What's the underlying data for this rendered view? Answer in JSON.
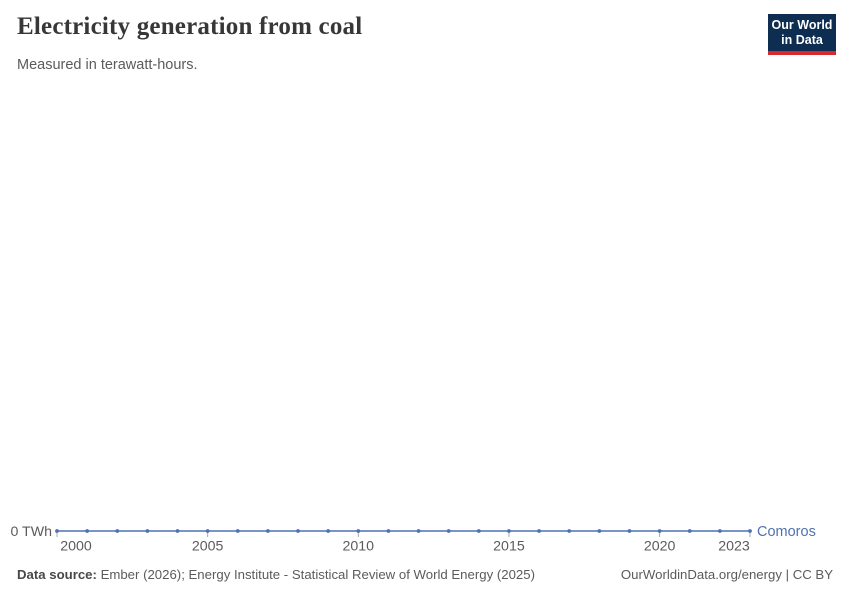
{
  "header": {
    "title": "Electricity generation from coal",
    "subtitle": "Measured in terawatt-hours.",
    "logo": {
      "line1": "Our World",
      "line2": "in Data"
    }
  },
  "chart_data": {
    "type": "line",
    "title": "Electricity generation from coal",
    "subtitle": "Measured in terawatt-hours.",
    "unit": "TWh",
    "x": [
      2000,
      2001,
      2002,
      2003,
      2004,
      2005,
      2006,
      2007,
      2008,
      2009,
      2010,
      2011,
      2012,
      2013,
      2014,
      2015,
      2016,
      2017,
      2018,
      2019,
      2020,
      2021,
      2022,
      2023
    ],
    "series": [
      {
        "name": "Comoros",
        "values": [
          0,
          0,
          0,
          0,
          0,
          0,
          0,
          0,
          0,
          0,
          0,
          0,
          0,
          0,
          0,
          0,
          0,
          0,
          0,
          0,
          0,
          0,
          0,
          0
        ]
      }
    ],
    "x_tick_labels": [
      2000,
      2005,
      2010,
      2015,
      2020,
      2023
    ],
    "y_tick_labels": [
      "0 TWh"
    ],
    "ylim": [
      0,
      1
    ],
    "grid": false,
    "legend": "inline-end-label",
    "markers": true
  },
  "footer": {
    "source_label": "Data source:",
    "source_text": "Ember (2026); Energy Institute - Statistical Review of World Energy (2025)",
    "link_text": "OurWorldinData.org/energy | CC BY"
  },
  "colors": {
    "line": "#4f72b2",
    "entity_label": "#4f72b2",
    "axis_text": "#5b5b5b",
    "tick": "#a9a9a9",
    "title": "#373737",
    "logo_bg": "#0d2d51",
    "logo_underline": "#d7282e"
  }
}
